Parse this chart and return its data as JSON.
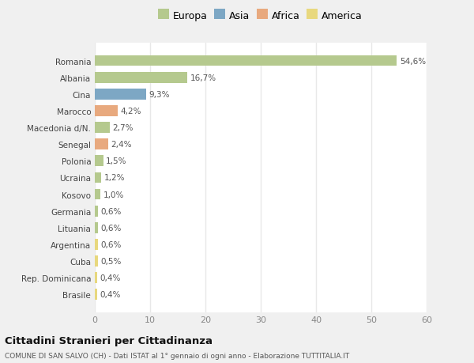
{
  "categories": [
    "Romania",
    "Albania",
    "Cina",
    "Marocco",
    "Macedonia d/N.",
    "Senegal",
    "Polonia",
    "Ucraina",
    "Kosovo",
    "Germania",
    "Lituania",
    "Argentina",
    "Cuba",
    "Rep. Dominicana",
    "Brasile"
  ],
  "values": [
    54.6,
    16.7,
    9.3,
    4.2,
    2.7,
    2.4,
    1.5,
    1.2,
    1.0,
    0.6,
    0.6,
    0.6,
    0.5,
    0.4,
    0.4
  ],
  "labels": [
    "54,6%",
    "16,7%",
    "9,3%",
    "4,2%",
    "2,7%",
    "2,4%",
    "1,5%",
    "1,2%",
    "1,0%",
    "0,6%",
    "0,6%",
    "0,6%",
    "0,5%",
    "0,4%",
    "0,4%"
  ],
  "colors": [
    "#b5c98e",
    "#b5c98e",
    "#7da7c4",
    "#e8a97e",
    "#b5c98e",
    "#e8a97e",
    "#b5c98e",
    "#b5c98e",
    "#b5c98e",
    "#b5c98e",
    "#b5c98e",
    "#e8d87e",
    "#e8d87e",
    "#e8d87e",
    "#e8d87e"
  ],
  "legend_labels": [
    "Europa",
    "Asia",
    "Africa",
    "America"
  ],
  "legend_colors": [
    "#b5c98e",
    "#7da7c4",
    "#e8a97e",
    "#e8d87e"
  ],
  "xlim": [
    0,
    60
  ],
  "xticks": [
    0,
    10,
    20,
    30,
    40,
    50,
    60
  ],
  "title": "Cittadini Stranieri per Cittadinanza",
  "subtitle": "COMUNE DI SAN SALVO (CH) - Dati ISTAT al 1° gennaio di ogni anno - Elaborazione TUTTITALIA.IT",
  "background_color": "#f0f0f0",
  "bar_background": "#ffffff",
  "grid_color": "#e8e8e8"
}
